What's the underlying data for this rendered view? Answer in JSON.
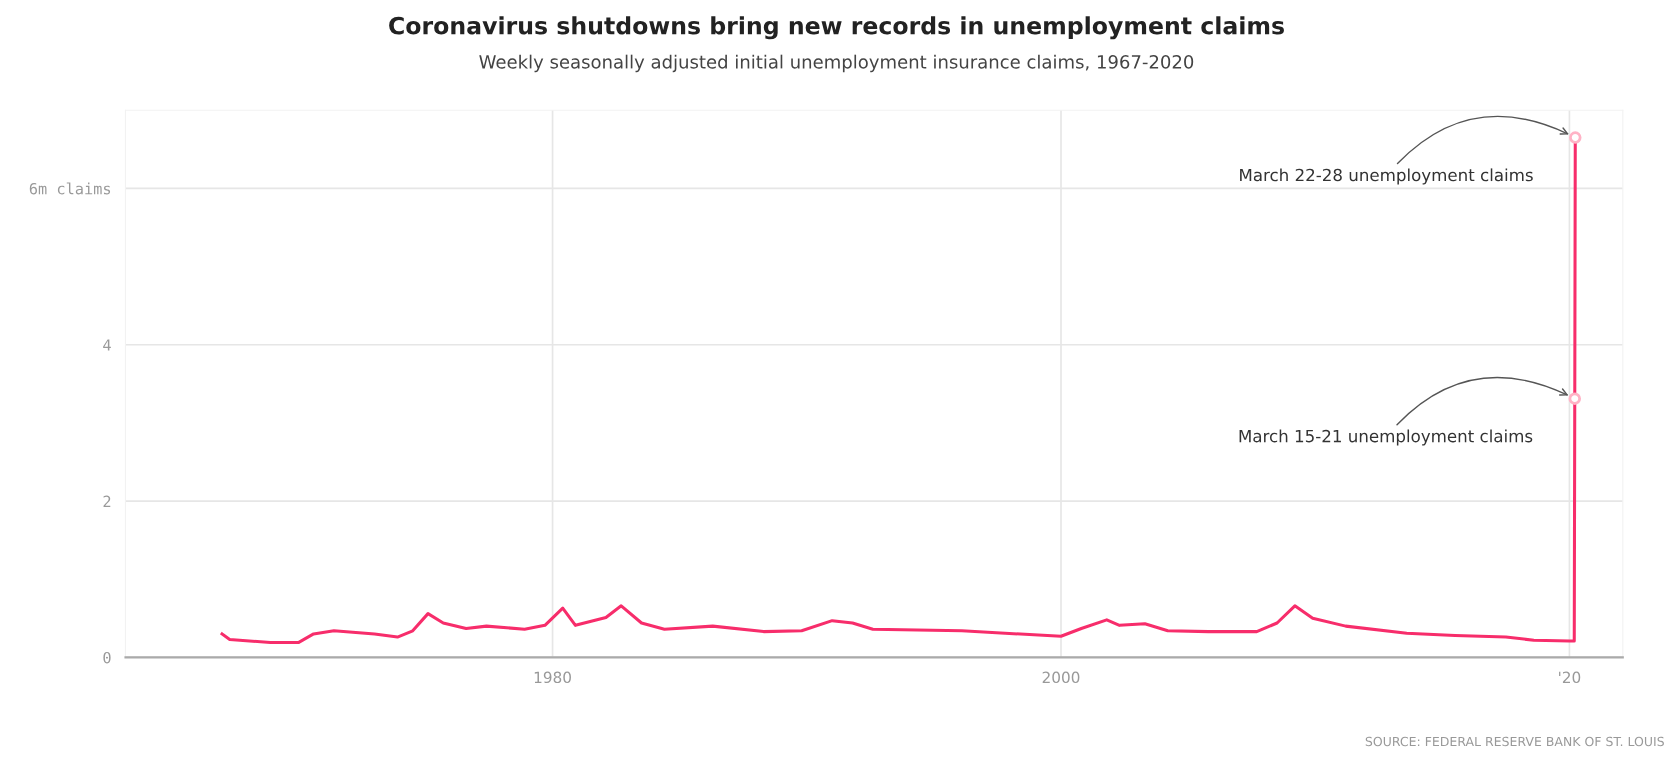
{
  "chart_data": {
    "type": "line",
    "title": "Coronavirus shutdowns bring new records in unemployment claims",
    "subtitle": "Weekly seasonally adjusted initial unemployment insurance claims, 1967-2020",
    "x": [
      1967.0,
      1967.3,
      1968.9,
      1970.0,
      1970.6,
      1971.4,
      1973.0,
      1973.9,
      1974.5,
      1975.1,
      1975.7,
      1976.6,
      1977.4,
      1978.9,
      1979.7,
      1980.4,
      1980.9,
      1982.1,
      1982.7,
      1983.5,
      1984.4,
      1986.3,
      1988.3,
      1989.8,
      1991.0,
      1991.8,
      1992.6,
      1996.1,
      2000.0,
      2000.8,
      2001.8,
      2002.3,
      2003.3,
      2004.2,
      2005.8,
      2007.7,
      2008.5,
      2009.2,
      2009.9,
      2011.2,
      2013.6,
      2015.5,
      2017.5,
      2018.6,
      2020.0,
      2020.19,
      2020.21,
      2020.23
    ],
    "series": [
      {
        "color": "#f72d6b",
        "values": [
          0.3,
          0.23,
          0.19,
          0.19,
          0.3,
          0.34,
          0.3,
          0.26,
          0.34,
          0.56,
          0.44,
          0.37,
          0.4,
          0.36,
          0.41,
          0.63,
          0.41,
          0.51,
          0.66,
          0.44,
          0.36,
          0.4,
          0.33,
          0.34,
          0.47,
          0.44,
          0.36,
          0.34,
          0.27,
          0.37,
          0.48,
          0.41,
          0.43,
          0.34,
          0.33,
          0.33,
          0.44,
          0.66,
          0.5,
          0.4,
          0.31,
          0.28,
          0.26,
          0.22,
          0.21,
          0.21,
          3.31,
          6.65
        ]
      }
    ],
    "xlim": [
      1963.2,
      2022.1
    ],
    "xticks": [
      1980,
      2000,
      {
        "value": 2020,
        "label": "'20"
      }
    ],
    "ylim": [
      0,
      7.0
    ],
    "yticks": [
      0,
      2,
      4,
      {
        "value": 6,
        "label": "6m claims"
      }
    ],
    "grid": true,
    "legend": false,
    "marker": "none",
    "line_style": "solid",
    "annotations": [
      {
        "text": "March 22-28 unemployment claims",
        "x": 2020.23,
        "y": 6.65
      },
      {
        "text": "March 15-21 unemployment claims",
        "x": 2020.21,
        "y": 3.31
      },
      "SOURCE: FEDERAL RESERVE BANK OF ST. LOUIS"
    ]
  }
}
